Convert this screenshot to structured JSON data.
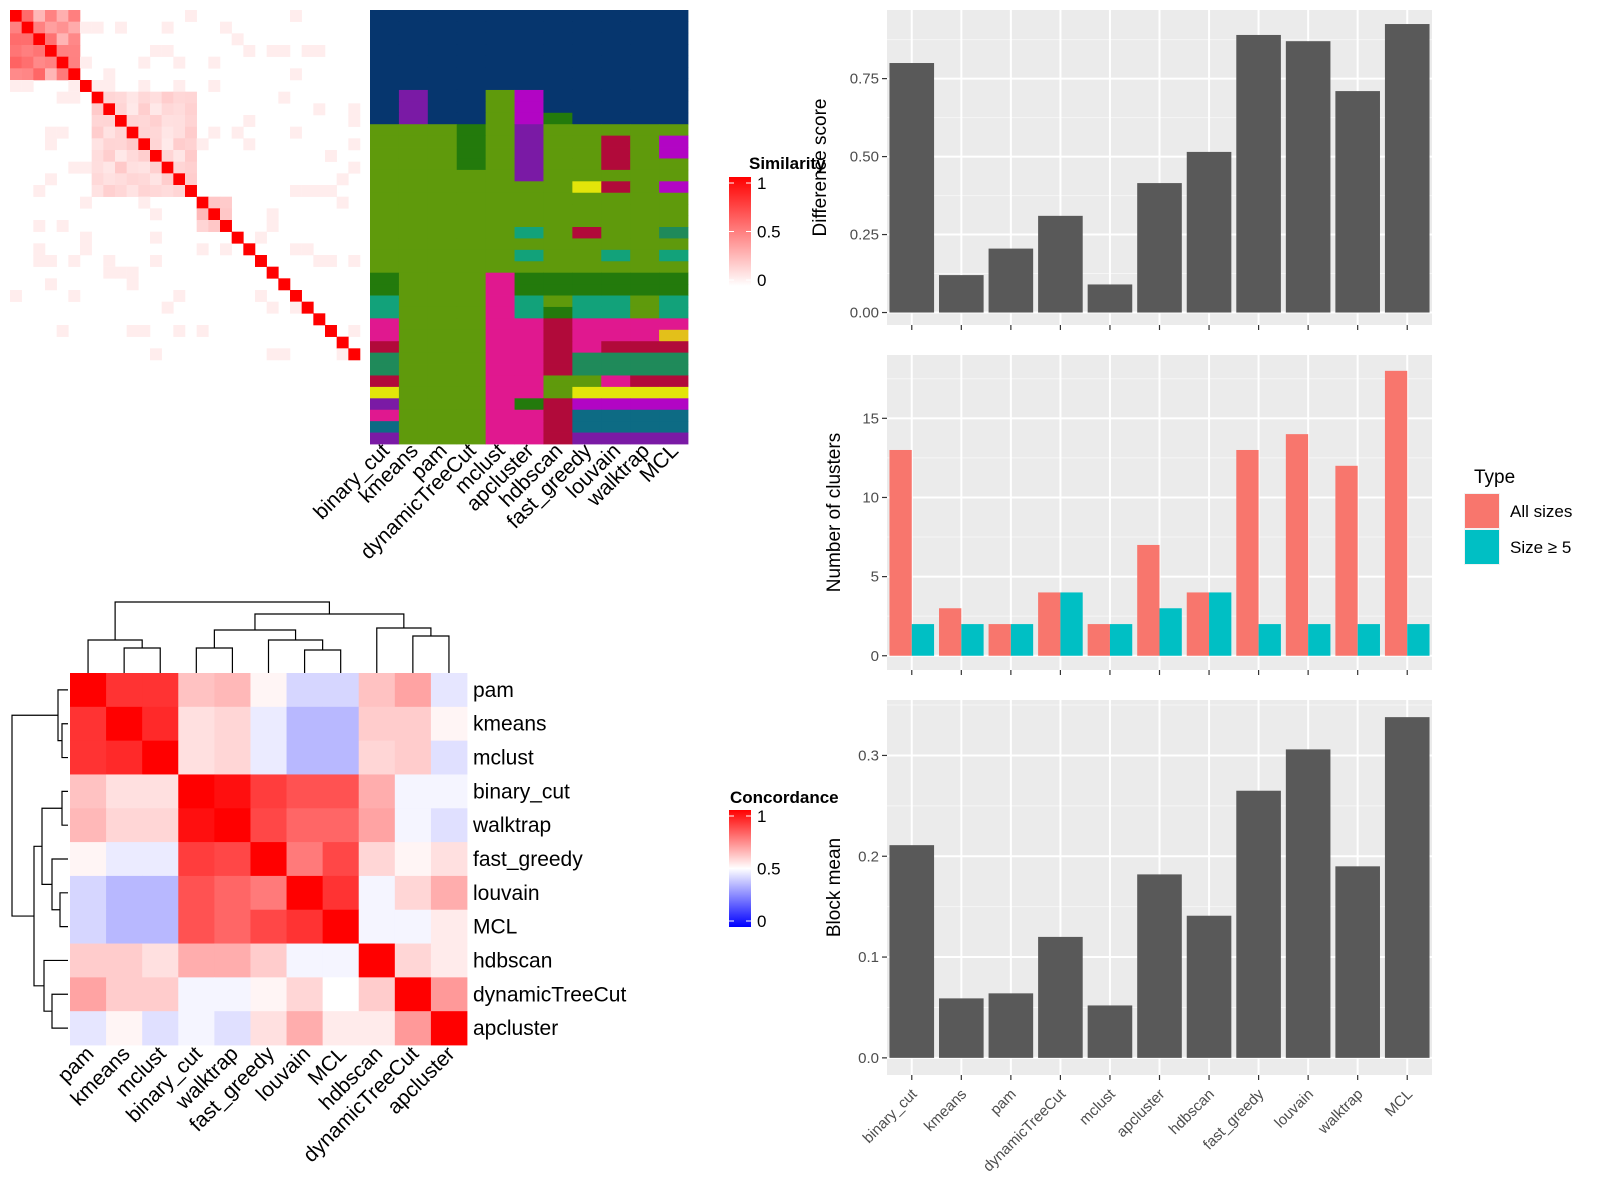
{
  "chart_data": [
    {
      "type": "heatmap",
      "id": "similarity",
      "legend_title": "Similarity",
      "legend_ticks": [
        "1",
        "0.5",
        "0"
      ],
      "colors": {
        "high": "#ff0000",
        "low": "#ffffff"
      },
      "n": 30,
      "diagonal": 1.0,
      "blocks": [
        {
          "rows": [
            0,
            5
          ],
          "value": 0.45
        },
        {
          "rows": [
            7,
            15
          ],
          "value": 0.15
        },
        {
          "rows": [
            16,
            18
          ],
          "value": 0.2
        }
      ],
      "scattered_off_block_value": 0.07
    },
    {
      "type": "heatmap",
      "id": "cluster-assignments",
      "categories": [
        "binary_cut",
        "kmeans",
        "pam",
        "dynamicTreeCut",
        "mclust",
        "apcluster",
        "hdbscan",
        "fast_greedy",
        "louvain",
        "walktrap",
        "MCL"
      ],
      "colors": {
        "A": "#06366e",
        "B": "#5f9a0c",
        "C": "#237a0c",
        "D": "#e0188f",
        "E": "#b10a3a",
        "F": "#12a27a",
        "G": "#7a1aa5",
        "H": "#b205c4",
        "I": "#e3e50a",
        "J": "#0d6b84",
        "K": "#1f8a5a",
        "L": "#e3c01a"
      },
      "rows": [
        "AAAAAAAAAAA",
        "AAAAAAAAAAA",
        "AAAAAAAAAAA",
        "AAAAAAAAAAA",
        "AAAAAAAAAAA",
        "AAAAAAAAAAA",
        "AAAAAAAAAAA",
        "AGAABHAAAAA",
        "AGAABHAAAAA",
        "AGAABHCAAAA",
        "BBBCBGBBBBB",
        "BBBCBGBBEBH",
        "BBBCBGBBEBH",
        "BBBCBGBBEBB",
        "BBBBBGBBBBB",
        "BBBBBBBIEBH",
        "BBBBBBBBBBB",
        "BBBBBBBBBBB",
        "BBBBBBBBBBB",
        "BBBBBFBEBBK",
        "BBBBBBBBBBB",
        "BBBBBFBBFBF",
        "BBBBBBBBBBB",
        "CBBBDCCCCCC",
        "CBBBDCCCCCC",
        "FBBBDFBFFBF",
        "FBBBDFCFFBF",
        "DBBBDDEDDDD",
        "DBBBDDEDDDL",
        "EBBBDDEDEEE",
        "KBBBDDEKKKK",
        "KBBBDDEKKKK",
        "EBBBDDBBDEE",
        "IBBBDDBIIII",
        "GBBBDCEHHHH",
        "DBBBDDEJJJJ",
        "JBBBDDEJJJJ",
        "GBBBDDEGGGG"
      ]
    },
    {
      "type": "heatmap",
      "id": "concordance",
      "legend_title": "Concordance",
      "legend_ticks": [
        "1",
        "0.5",
        "0"
      ],
      "colors": {
        "high": "#ff0000",
        "mid": "#ffffff",
        "low": "#0000ff"
      },
      "row_labels": [
        "pam",
        "kmeans",
        "mclust",
        "binary_cut",
        "walktrap",
        "fast_greedy",
        "louvain",
        "MCL",
        "hdbscan",
        "dynamicTreeCut",
        "apcluster"
      ],
      "col_labels": [
        "pam",
        "kmeans",
        "mclust",
        "binary_cut",
        "walktrap",
        "fast_greedy",
        "louvain",
        "MCL",
        "hdbscan",
        "dynamicTreeCut",
        "apcluster"
      ],
      "matrix": [
        [
          1.0,
          0.9,
          0.9,
          0.62,
          0.64,
          0.52,
          0.42,
          0.42,
          0.62,
          0.68,
          0.45
        ],
        [
          0.9,
          1.0,
          0.92,
          0.56,
          0.58,
          0.46,
          0.36,
          0.36,
          0.6,
          0.6,
          0.52
        ],
        [
          0.9,
          0.92,
          1.0,
          0.56,
          0.58,
          0.46,
          0.36,
          0.36,
          0.58,
          0.6,
          0.44
        ],
        [
          0.62,
          0.56,
          0.56,
          1.0,
          0.97,
          0.88,
          0.84,
          0.84,
          0.66,
          0.48,
          0.48
        ],
        [
          0.64,
          0.58,
          0.58,
          0.97,
          1.0,
          0.86,
          0.8,
          0.8,
          0.68,
          0.48,
          0.44
        ],
        [
          0.52,
          0.46,
          0.46,
          0.88,
          0.86,
          1.0,
          0.76,
          0.86,
          0.58,
          0.52,
          0.56
        ],
        [
          0.42,
          0.36,
          0.36,
          0.84,
          0.8,
          0.76,
          1.0,
          0.9,
          0.48,
          0.58,
          0.66
        ],
        [
          0.42,
          0.36,
          0.36,
          0.84,
          0.8,
          0.86,
          0.9,
          1.0,
          0.48,
          0.48,
          0.54
        ],
        [
          0.6,
          0.6,
          0.56,
          0.66,
          0.66,
          0.6,
          0.48,
          0.48,
          1.0,
          0.58,
          0.54
        ],
        [
          0.68,
          0.6,
          0.6,
          0.48,
          0.48,
          0.52,
          0.58,
          0.5,
          0.6,
          1.0,
          0.7
        ],
        [
          0.45,
          0.52,
          0.44,
          0.48,
          0.44,
          0.56,
          0.66,
          0.54,
          0.54,
          0.7,
          1.0
        ]
      ]
    },
    {
      "type": "bar",
      "id": "difference-score",
      "categories": [
        "binary_cut",
        "kmeans",
        "pam",
        "dynamicTreeCut",
        "mclust",
        "apcluster",
        "hdbscan",
        "fast_greedy",
        "louvain",
        "walktrap",
        "MCL"
      ],
      "values": [
        0.8,
        0.12,
        0.205,
        0.31,
        0.09,
        0.415,
        0.515,
        0.89,
        0.87,
        0.71,
        0.925
      ],
      "ylabel": "Difference score",
      "ylim": [
        -0.04,
        0.97
      ],
      "yticks": [
        0,
        0.25,
        0.5,
        0.75
      ],
      "ytick_labels": [
        "0.00",
        "0.25",
        "0.50",
        "0.75"
      ],
      "bar_color": "#595959"
    },
    {
      "type": "bar",
      "id": "number-of-clusters",
      "categories": [
        "binary_cut",
        "kmeans",
        "pam",
        "dynamicTreeCut",
        "mclust",
        "apcluster",
        "hdbscan",
        "fast_greedy",
        "louvain",
        "walktrap",
        "MCL"
      ],
      "series": [
        {
          "name": "All sizes",
          "color": "#f8766d",
          "values": [
            13,
            3,
            2,
            4,
            2,
            7,
            4,
            13,
            14,
            12,
            18
          ]
        },
        {
          "name": "Size ≥ 5",
          "color": "#00bfc4",
          "values": [
            2,
            2,
            2,
            4,
            2,
            3,
            4,
            2,
            2,
            2,
            2
          ]
        }
      ],
      "ylabel": "Number of clusters",
      "ylim": [
        -0.9,
        19
      ],
      "yticks": [
        0,
        5,
        10,
        15
      ],
      "ytick_labels": [
        "0",
        "5",
        "10",
        "15"
      ],
      "legend_title": "Type",
      "legend_position": "right"
    },
    {
      "type": "bar",
      "id": "block-mean",
      "categories": [
        "binary_cut",
        "kmeans",
        "pam",
        "dynamicTreeCut",
        "mclust",
        "apcluster",
        "hdbscan",
        "fast_greedy",
        "louvain",
        "walktrap",
        "MCL"
      ],
      "values": [
        0.211,
        0.059,
        0.064,
        0.12,
        0.052,
        0.182,
        0.141,
        0.265,
        0.306,
        0.19,
        0.338
      ],
      "ylabel": "Block mean",
      "ylim": [
        -0.017,
        0.355
      ],
      "yticks": [
        0,
        0.1,
        0.2,
        0.3
      ],
      "ytick_labels": [
        "0.0",
        "0.1",
        "0.2",
        "0.3"
      ],
      "bar_color": "#595959"
    }
  ]
}
